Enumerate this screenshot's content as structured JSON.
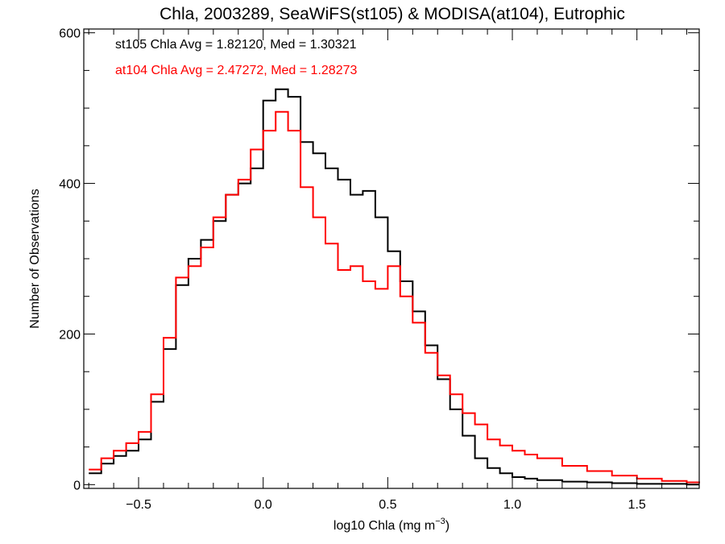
{
  "chart_data": {
    "type": "line",
    "style": "step-histogram",
    "title": "Chla, 2003289, SeaWiFS(st105) & MODISA(at104), Eutrophic",
    "xlabel_main": "log10 Chla (mg m",
    "xlabel_sup": "−3",
    "xlabel_end": ")",
    "ylabel": "Number of Observations",
    "xlim": [
      -0.72,
      1.75
    ],
    "ylim": [
      -5,
      605
    ],
    "x_ticks": [
      {
        "value": -0.5,
        "label": "−0.5"
      },
      {
        "value": 0.0,
        "label": "0.0"
      },
      {
        "value": 0.5,
        "label": "0.5"
      },
      {
        "value": 1.0,
        "label": "1.0"
      },
      {
        "value": 1.5,
        "label": "1.5"
      }
    ],
    "y_ticks": [
      {
        "value": 0,
        "label": "0"
      },
      {
        "value": 200,
        "label": "200"
      },
      {
        "value": 400,
        "label": "400"
      },
      {
        "value": 600,
        "label": "600"
      }
    ],
    "legend_position": "top-left",
    "grid": false,
    "annotations": [
      {
        "text": "st105 Chla Avg = 1.82120, Med = 1.30321",
        "color": "#000000"
      },
      {
        "text": "at104 Chla Avg = 2.47272, Med = 1.28273",
        "color": "#ff0000"
      }
    ],
    "series": [
      {
        "color": "#000000",
        "x": [
          -0.7,
          -0.65,
          -0.6,
          -0.55,
          -0.5,
          -0.45,
          -0.4,
          -0.35,
          -0.3,
          -0.25,
          -0.2,
          -0.15,
          -0.1,
          -0.05,
          0.0,
          0.05,
          0.1,
          0.15,
          0.2,
          0.25,
          0.3,
          0.35,
          0.4,
          0.45,
          0.5,
          0.55,
          0.6,
          0.65,
          0.7,
          0.75,
          0.8,
          0.85,
          0.9,
          0.95,
          1.0,
          1.05,
          1.1,
          1.2,
          1.3,
          1.4,
          1.5,
          1.6,
          1.7,
          1.75
        ],
        "y": [
          15,
          28,
          38,
          45,
          60,
          110,
          180,
          265,
          300,
          325,
          350,
          385,
          400,
          420,
          510,
          525,
          515,
          455,
          440,
          420,
          405,
          385,
          390,
          355,
          310,
          270,
          230,
          185,
          140,
          100,
          65,
          35,
          22,
          15,
          10,
          8,
          6,
          4,
          3,
          2,
          1,
          1,
          0,
          0
        ]
      },
      {
        "color": "#ff0000",
        "x": [
          -0.7,
          -0.65,
          -0.6,
          -0.55,
          -0.5,
          -0.45,
          -0.4,
          -0.35,
          -0.3,
          -0.25,
          -0.2,
          -0.15,
          -0.1,
          -0.05,
          0.0,
          0.05,
          0.1,
          0.15,
          0.2,
          0.25,
          0.3,
          0.35,
          0.4,
          0.45,
          0.5,
          0.55,
          0.6,
          0.65,
          0.7,
          0.75,
          0.8,
          0.85,
          0.9,
          0.95,
          1.0,
          1.05,
          1.1,
          1.2,
          1.3,
          1.4,
          1.5,
          1.6,
          1.7,
          1.75
        ],
        "y": [
          20,
          35,
          45,
          55,
          70,
          120,
          195,
          275,
          290,
          315,
          355,
          385,
          405,
          445,
          470,
          495,
          470,
          395,
          355,
          320,
          285,
          290,
          270,
          260,
          290,
          250,
          215,
          175,
          145,
          120,
          95,
          80,
          60,
          52,
          45,
          40,
          35,
          25,
          18,
          12,
          8,
          5,
          3,
          2
        ]
      }
    ]
  }
}
